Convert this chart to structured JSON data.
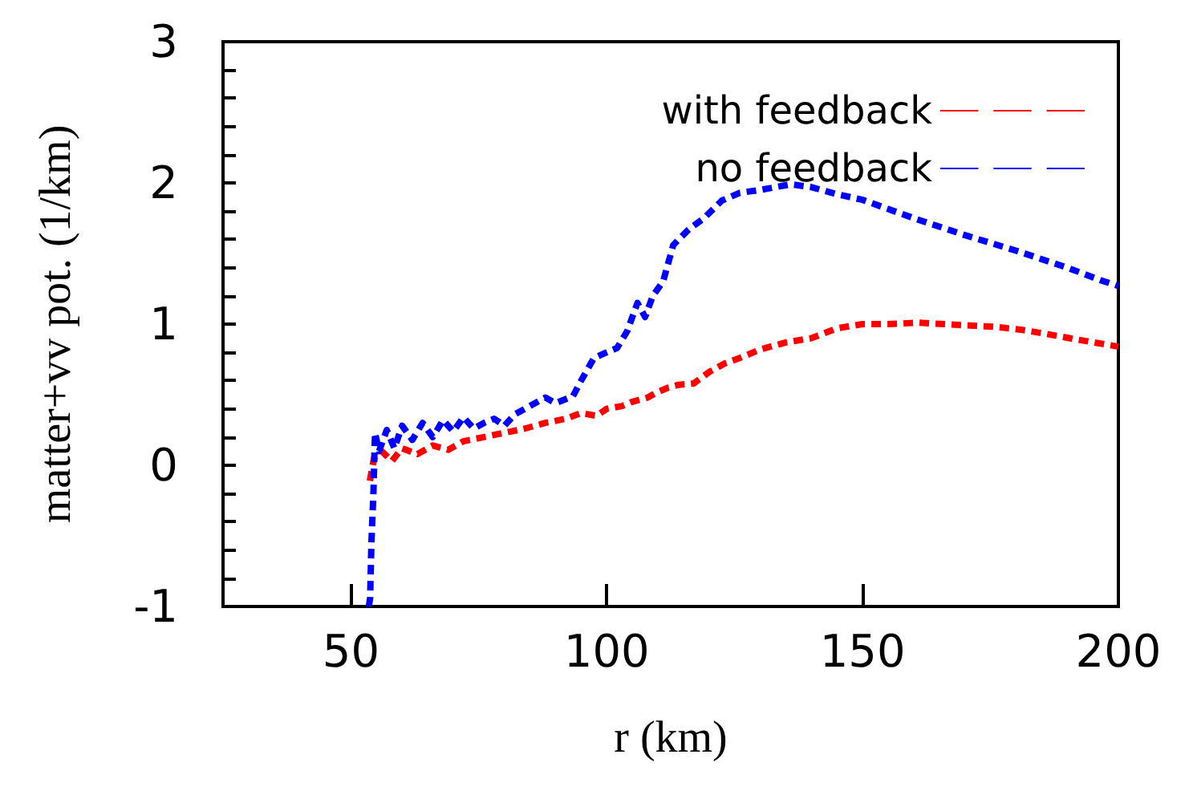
{
  "chart_data": {
    "type": "line",
    "xlabel": "r (km)",
    "ylabel": "matter+vv pot. (1/km)",
    "xlim": [
      25,
      200
    ],
    "xticks": [
      50,
      100,
      150,
      200
    ],
    "ylim": [
      -1,
      3
    ],
    "yticks": [
      -1,
      0,
      1,
      2,
      3
    ],
    "grid": false,
    "legend": "top right",
    "marker": "none",
    "line_style": "dashed",
    "series": [
      {
        "name": "with feedback",
        "color": "#ff0000",
        "x": [
          53.7,
          54.5,
          56,
          58,
          60,
          63,
          66,
          69,
          72,
          76,
          80,
          84,
          88,
          92,
          95,
          98,
          100,
          103,
          105,
          108,
          110,
          112,
          114,
          117,
          120,
          123,
          126,
          130,
          135,
          140,
          145,
          150,
          155,
          161,
          166,
          171,
          176,
          181,
          186,
          192,
          198.5,
          200
        ],
        "values": [
          -0.11,
          0.05,
          0.1,
          0.03,
          0.12,
          0.08,
          0.14,
          0.11,
          0.17,
          0.2,
          0.23,
          0.26,
          0.3,
          0.33,
          0.37,
          0.35,
          0.4,
          0.42,
          0.45,
          0.48,
          0.52,
          0.55,
          0.57,
          0.58,
          0.66,
          0.72,
          0.76,
          0.82,
          0.87,
          0.9,
          0.97,
          1.0,
          1.0,
          1.01,
          1.0,
          0.99,
          0.98,
          0.96,
          0.93,
          0.89,
          0.85,
          0.84
        ]
      },
      {
        "name": "no feedback",
        "color": "#0000ff",
        "x": [
          53.5,
          53.75,
          54,
          54.4,
          54.7,
          55.5,
          57,
          58.5,
          60,
          62,
          64,
          66,
          68,
          70,
          72,
          74,
          76,
          78,
          80,
          82,
          85,
          88,
          90,
          93.4,
          95,
          97.5,
          100,
          102,
          104,
          106,
          107.5,
          109,
          111,
          113,
          116,
          119,
          122.5,
          126,
          130,
          133,
          136,
          140,
          145,
          150,
          160,
          170,
          180,
          190,
          196.6,
          200
        ],
        "values": [
          -1,
          -0.94,
          -0.55,
          -0.19,
          0.23,
          0.1,
          0.25,
          0.12,
          0.28,
          0.18,
          0.3,
          0.2,
          0.32,
          0.24,
          0.34,
          0.26,
          0.3,
          0.33,
          0.28,
          0.36,
          0.42,
          0.48,
          0.44,
          0.49,
          0.6,
          0.76,
          0.8,
          0.83,
          0.95,
          1.15,
          1.05,
          1.2,
          1.3,
          1.56,
          1.67,
          1.75,
          1.875,
          1.93,
          1.95,
          1.97,
          1.99,
          1.97,
          1.92,
          1.88,
          1.75,
          1.63,
          1.52,
          1.4,
          1.31,
          1.27
        ]
      }
    ]
  }
}
